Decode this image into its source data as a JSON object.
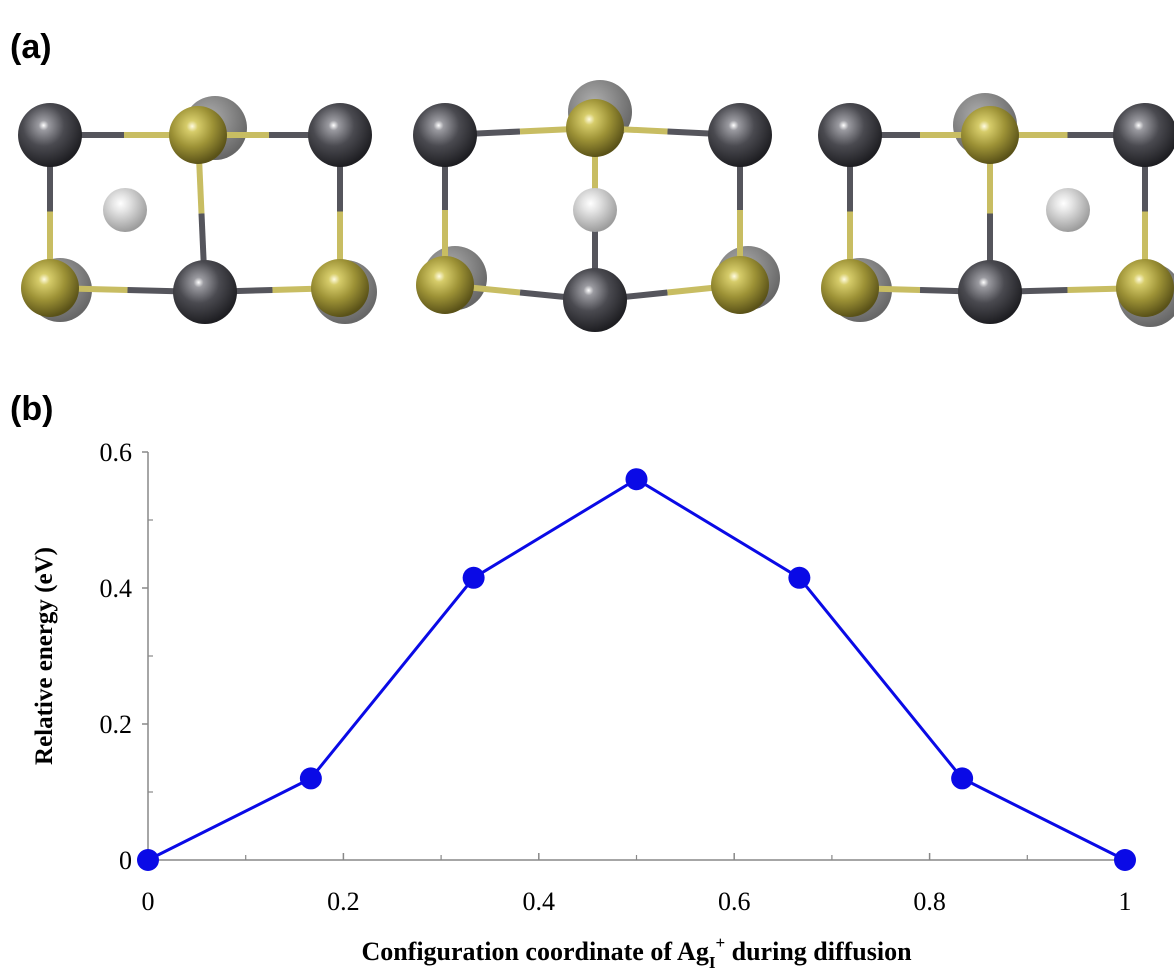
{
  "panels": {
    "a": "(a)",
    "b": "(b)"
  },
  "chart_data": {
    "type": "line",
    "x": [
      0,
      0.1667,
      0.3333,
      0.5,
      0.6667,
      0.8333,
      1
    ],
    "series": [
      {
        "color": "#0a0ae6",
        "values": [
          0,
          0.12,
          0.415,
          0.56,
          0.415,
          0.12,
          0
        ]
      }
    ],
    "xlim": [
      0,
      1
    ],
    "ylim": [
      0,
      0.6
    ],
    "xticks": [
      0,
      0.2,
      0.4,
      0.6,
      0.8,
      1
    ],
    "yticks": [
      0,
      0.2,
      0.4,
      0.6
    ],
    "xminorticks": [
      0.1,
      0.3,
      0.5,
      0.7,
      0.9
    ],
    "yminorticks": [
      0.1,
      0.3,
      0.5
    ],
    "ylabel": "Relative energy (eV)",
    "xlabel": [
      "Configuration coordinate of Ag",
      "I",
      "+",
      " during diffusion"
    ]
  }
}
